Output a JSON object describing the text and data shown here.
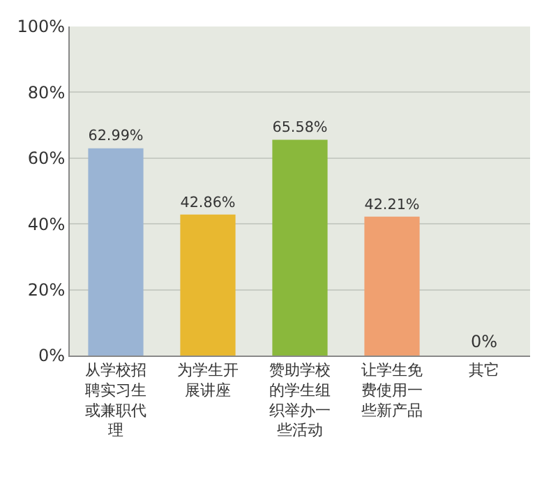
{
  "chart_data": {
    "type": "bar",
    "categories": [
      "从学校招聘实习生或兼职代理",
      "为学生开展讲座",
      "赞助学校的学生组织举办一些活动",
      "让学生免费使用一些新产品",
      "其它"
    ],
    "values": [
      62.99,
      42.86,
      65.58,
      42.21,
      0
    ],
    "colors": [
      "#9ab4d4",
      "#e8b830",
      "#8ab83c",
      "#f0a070",
      "#40b0b0"
    ],
    "value_labels": [
      "62.99%",
      "42.86%",
      "65.58%",
      "42.21%",
      "0%"
    ],
    "ylim": [
      0,
      100
    ],
    "yticks": [
      {
        "value": 0,
        "label": "0%"
      },
      {
        "value": 20,
        "label": "20%"
      },
      {
        "value": 40,
        "label": "40%"
      },
      {
        "value": 60,
        "label": "60%"
      },
      {
        "value": 80,
        "label": "80%"
      },
      {
        "value": 100,
        "label": "100%"
      }
    ],
    "grid": "y",
    "legend": false
  }
}
